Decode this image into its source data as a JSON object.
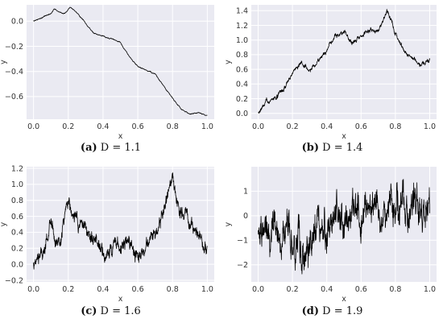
{
  "chart_data": [
    {
      "type": "line",
      "caption_label": "(a)",
      "caption_text": "D = 1.1",
      "xlabel": "x",
      "ylabel": "y",
      "xlim": [
        -0.04,
        1.04
      ],
      "ylim": [
        -0.78,
        0.13
      ],
      "xticks": [
        0.0,
        0.2,
        0.4,
        0.6,
        0.8,
        1.0
      ],
      "xtick_labels": [
        "0.0",
        "0.2",
        "0.4",
        "0.6",
        "0.8",
        "1.0"
      ],
      "yticks": [
        0.0,
        -0.2,
        -0.4,
        -0.6
      ],
      "ytick_labels": [
        "0.0",
        "−0.2",
        "−0.4",
        "−0.6"
      ],
      "grid": true,
      "roughness": 0.004,
      "anchors": [
        [
          0.0,
          0.0
        ],
        [
          0.05,
          0.03
        ],
        [
          0.1,
          0.06
        ],
        [
          0.12,
          0.1
        ],
        [
          0.15,
          0.07
        ],
        [
          0.18,
          0.06
        ],
        [
          0.21,
          0.11
        ],
        [
          0.24,
          0.08
        ],
        [
          0.28,
          0.02
        ],
        [
          0.31,
          -0.04
        ],
        [
          0.35,
          -0.1
        ],
        [
          0.4,
          -0.12
        ],
        [
          0.45,
          -0.14
        ],
        [
          0.5,
          -0.17
        ],
        [
          0.55,
          -0.28
        ],
        [
          0.6,
          -0.36
        ],
        [
          0.65,
          -0.39
        ],
        [
          0.7,
          -0.42
        ],
        [
          0.75,
          -0.52
        ],
        [
          0.8,
          -0.61
        ],
        [
          0.85,
          -0.7
        ],
        [
          0.9,
          -0.74
        ],
        [
          0.95,
          -0.73
        ],
        [
          1.0,
          -0.75
        ]
      ]
    },
    {
      "type": "line",
      "caption_label": "(b)",
      "caption_text": "D = 1.4",
      "xlabel": "x",
      "ylabel": "y",
      "xlim": [
        -0.04,
        1.04
      ],
      "ylim": [
        -0.08,
        1.48
      ],
      "xticks": [
        0.0,
        0.2,
        0.4,
        0.6,
        0.8,
        1.0
      ],
      "xtick_labels": [
        "0.0",
        "0.2",
        "0.4",
        "0.6",
        "0.8",
        "1.0"
      ],
      "yticks": [
        0.0,
        0.2,
        0.4,
        0.6,
        0.8,
        1.0,
        1.2,
        1.4
      ],
      "ytick_labels": [
        "0.0",
        "0.2",
        "0.4",
        "0.6",
        "0.8",
        "1.0",
        "1.2",
        "1.4"
      ],
      "grid": true,
      "roughness": 0.03,
      "anchors": [
        [
          0.0,
          0.0
        ],
        [
          0.05,
          0.15
        ],
        [
          0.1,
          0.2
        ],
        [
          0.15,
          0.35
        ],
        [
          0.2,
          0.55
        ],
        [
          0.25,
          0.7
        ],
        [
          0.3,
          0.58
        ],
        [
          0.35,
          0.72
        ],
        [
          0.4,
          0.88
        ],
        [
          0.45,
          1.05
        ],
        [
          0.5,
          1.1
        ],
        [
          0.55,
          0.95
        ],
        [
          0.6,
          1.05
        ],
        [
          0.65,
          1.15
        ],
        [
          0.7,
          1.1
        ],
        [
          0.75,
          1.4
        ],
        [
          0.8,
          1.1
        ],
        [
          0.85,
          0.85
        ],
        [
          0.9,
          0.75
        ],
        [
          0.95,
          0.65
        ],
        [
          1.0,
          0.72
        ]
      ]
    },
    {
      "type": "line",
      "caption_label": "(c)",
      "caption_text": "D = 1.6",
      "xlabel": "x",
      "ylabel": "y",
      "xlim": [
        -0.04,
        1.04
      ],
      "ylim": [
        -0.22,
        1.22
      ],
      "xticks": [
        0.0,
        0.2,
        0.4,
        0.6,
        0.8,
        1.0
      ],
      "xtick_labels": [
        "0.0",
        "0.2",
        "0.4",
        "0.6",
        "0.8",
        "1.0"
      ],
      "yticks": [
        -0.2,
        0.0,
        0.2,
        0.4,
        0.6,
        0.8,
        1.0,
        1.2
      ],
      "ytick_labels": [
        "−0.2",
        "0.0",
        "0.2",
        "0.4",
        "0.6",
        "0.8",
        "1.0",
        "1.2"
      ],
      "grid": true,
      "roughness": 0.09,
      "anchors": [
        [
          0.0,
          -0.05
        ],
        [
          0.05,
          0.1
        ],
        [
          0.1,
          0.5
        ],
        [
          0.15,
          0.2
        ],
        [
          0.2,
          0.85
        ],
        [
          0.25,
          0.5
        ],
        [
          0.3,
          0.45
        ],
        [
          0.35,
          0.3
        ],
        [
          0.4,
          0.15
        ],
        [
          0.45,
          0.2
        ],
        [
          0.5,
          0.25
        ],
        [
          0.55,
          0.3
        ],
        [
          0.6,
          0.1
        ],
        [
          0.65,
          0.2
        ],
        [
          0.7,
          0.35
        ],
        [
          0.75,
          0.7
        ],
        [
          0.8,
          1.1
        ],
        [
          0.85,
          0.6
        ],
        [
          0.9,
          0.5
        ],
        [
          0.95,
          0.35
        ],
        [
          1.0,
          0.2
        ]
      ]
    },
    {
      "type": "line",
      "caption_label": "(d)",
      "caption_text": "D = 1.9",
      "xlabel": "x",
      "ylabel": "y",
      "xlim": [
        -0.04,
        1.04
      ],
      "ylim": [
        -2.7,
        2.0
      ],
      "xticks": [
        0.0,
        0.2,
        0.4,
        0.6,
        0.8,
        1.0
      ],
      "xtick_labels": [
        "0.0",
        "0.2",
        "0.4",
        "0.6",
        "0.8",
        "1.0"
      ],
      "yticks": [
        -2,
        -1,
        0,
        1
      ],
      "ytick_labels": [
        "−2",
        "−1",
        "0",
        "1"
      ],
      "grid": true,
      "roughness": 0.8,
      "anchors": [
        [
          0.0,
          -0.3
        ],
        [
          0.1,
          -0.5
        ],
        [
          0.2,
          -1.0
        ],
        [
          0.27,
          -1.6
        ],
        [
          0.35,
          -0.8
        ],
        [
          0.45,
          -0.3
        ],
        [
          0.55,
          0.0
        ],
        [
          0.65,
          0.5
        ],
        [
          0.75,
          0.4
        ],
        [
          0.85,
          0.3
        ],
        [
          0.95,
          0.2
        ],
        [
          1.0,
          0.3
        ]
      ]
    }
  ]
}
